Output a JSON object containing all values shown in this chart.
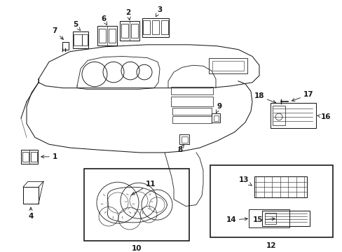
{
  "bg_color": "#ffffff",
  "lc": "#1a1a1a",
  "fig_width": 4.89,
  "fig_height": 3.6,
  "dpi": 100,
  "fs": 7.5
}
